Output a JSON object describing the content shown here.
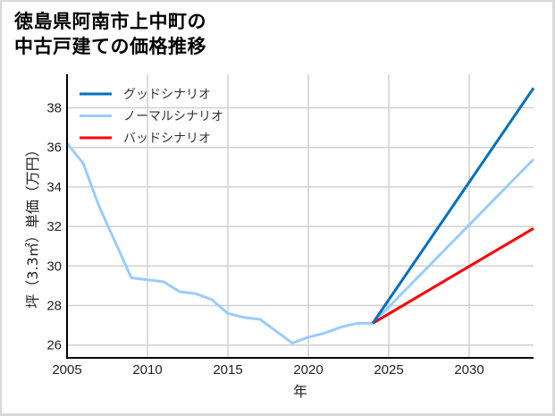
{
  "title": {
    "line1": "徳島県阿南市上中町の",
    "line2": "中古戸建ての価格推移"
  },
  "chart_data": {
    "type": "line",
    "title": "徳島県阿南市上中町の中古戸建ての価格推移",
    "xlabel": "年",
    "ylabel": "坪（3.3㎡）単価（万円）",
    "xlim": [
      2005,
      2034
    ],
    "ylim": [
      25.5,
      39.7
    ],
    "xticks": [
      2005,
      2010,
      2015,
      2020,
      2025,
      2030
    ],
    "yticks": [
      26,
      28,
      30,
      32,
      34,
      36,
      38
    ],
    "grid": true,
    "legend_position": "upper left",
    "series": [
      {
        "name": "グッドシナリオ",
        "color": "#0070c0",
        "x": [
          2024,
          2034
        ],
        "values": [
          27.1,
          39.0
        ]
      },
      {
        "name": "ノーマルシナリオ",
        "color": "#99ccff",
        "x": [
          2005,
          2006,
          2007,
          2008,
          2009,
          2010,
          2011,
          2012,
          2013,
          2014,
          2015,
          2016,
          2017,
          2018,
          2019,
          2020,
          2021,
          2022,
          2023,
          2024,
          2034
        ],
        "values": [
          36.2,
          35.2,
          33.0,
          31.2,
          29.4,
          29.3,
          29.2,
          28.7,
          28.6,
          28.3,
          27.6,
          27.4,
          27.3,
          26.7,
          26.1,
          26.4,
          26.6,
          26.9,
          27.1,
          27.1,
          35.4
        ]
      },
      {
        "name": "バッドシナリオ",
        "color": "#ff0000",
        "x": [
          2024,
          2034
        ],
        "values": [
          27.1,
          31.9
        ]
      }
    ]
  }
}
